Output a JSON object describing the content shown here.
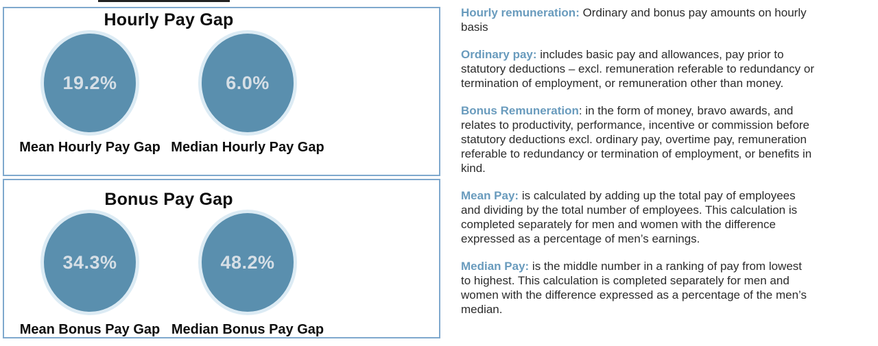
{
  "chart_data": [
    {
      "type": "table",
      "title": "Hourly Pay Gap",
      "categories": [
        "Mean Hourly Pay Gap",
        "Median Hourly Pay Gap"
      ],
      "values": [
        19.2,
        6.0
      ],
      "unit": "%"
    },
    {
      "type": "table",
      "title": "Bonus Pay Gap",
      "categories": [
        "Mean Bonus Pay Gap",
        "Median Bonus Pay Gap"
      ],
      "values": [
        34.3,
        48.2
      ],
      "unit": "%"
    }
  ],
  "panels": [
    {
      "title": "Hourly Pay Gap",
      "stats": [
        {
          "value": "19.2%",
          "label": "Mean Hourly Pay Gap"
        },
        {
          "value": "6.0%",
          "label": "Median Hourly Pay Gap"
        }
      ]
    },
    {
      "title": "Bonus Pay Gap",
      "stats": [
        {
          "value": "34.3%",
          "label": "Mean Bonus Pay Gap"
        },
        {
          "value": "48.2%",
          "label": "Median Bonus Pay Gap"
        }
      ]
    }
  ],
  "definitions": [
    {
      "term": "Hourly remuneration:",
      "text": " Ordinary and bonus pay amounts on hourly basis"
    },
    {
      "term": "Ordinary pay:",
      "text": " includes basic pay and allowances, pay prior to statutory deductions – excl. remuneration referable to redundancy or termination of employment, or remuneration other than money."
    },
    {
      "term": "Bonus Remuneration",
      "text": ": in the form of money, bravo awards, and relates to productivity, performance, incentive or commission before statutory deductions excl. ordinary pay, overtime pay, remuneration referable to redundancy or termination of employment, or benefits in kind."
    },
    {
      "term": "Mean Pay:",
      "text": " is calculated by adding up the total pay of employees and dividing by the total number of employees. This calculation is completed separately for men and women with the difference expressed as a percentage of men’s earnings."
    },
    {
      "term": "Median Pay:",
      "text": " is the middle number in a ranking of pay from lowest to highest. This calculation is completed separately for men and women with the difference expressed as a percentage of the men’s median."
    }
  ],
  "colors": {
    "bubble_fill": "#5a8fae",
    "bubble_ring": "#dcebf4",
    "value_text": "#d6dfe6",
    "panel_border": "#7ea8cd",
    "term_accent": "#699bbd",
    "body_text": "#2b2b2b"
  }
}
